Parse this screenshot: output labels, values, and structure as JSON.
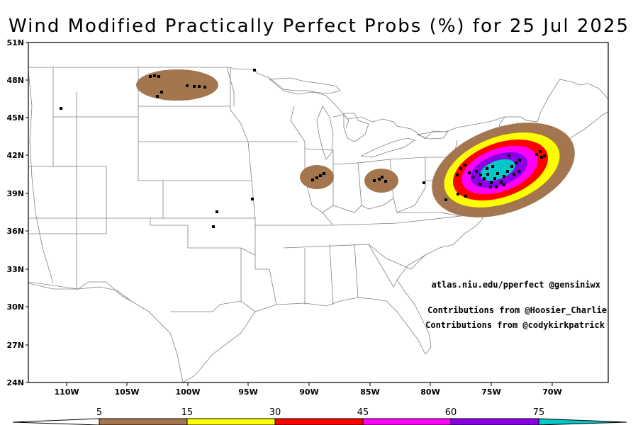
{
  "title": "Wind Modified Practically Perfect Probs (%) for 25 Jul 2025",
  "map": {
    "lat_ticks": [
      "51N",
      "48N",
      "45N",
      "42N",
      "39N",
      "36N",
      "33N",
      "30N",
      "27N",
      "24N"
    ],
    "lon_ticks": [
      "110W",
      "105W",
      "100W",
      "95W",
      "90W",
      "85W",
      "80W",
      "75W",
      "70W"
    ],
    "credits": [
      "atlas.niu.edu/pperfect @gensiniwx",
      "Contributions from @Hoosier_Charlie",
      "Contributions from @codykirkpatrick"
    ]
  },
  "colorbar": {
    "labels": [
      "5",
      "15",
      "30",
      "45",
      "60",
      "75"
    ],
    "colors": [
      "#ffffff",
      "#a3764f",
      "#ffff00",
      "#ff0000",
      "#ff00ff",
      "#8a00e6",
      "#00c8c8"
    ]
  }
}
